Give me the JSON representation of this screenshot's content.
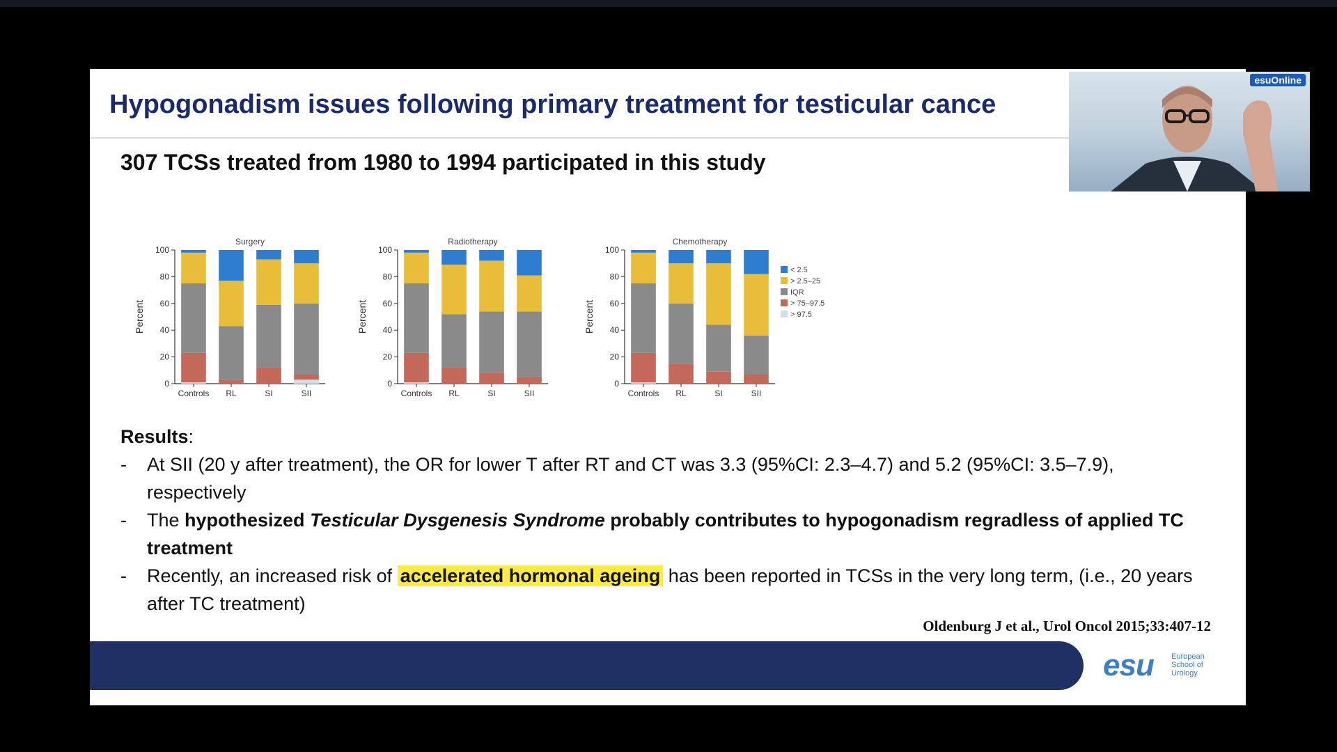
{
  "slide": {
    "title": "Hypogonadism issues following primary treatment for testicular cance",
    "subtitle": "307 TCSs treated from 1980 to 1994 participated in this study",
    "results_label": "Results",
    "results_colon": ":",
    "bullet_dash": "-",
    "bullets": [
      {
        "text": "At SII (20 y after treatment), the OR for lower T after RT and CT was 3.3 (95%CI: 2.3–4.7) and 5.2 (95%CI: 3.5–7.9), respectively"
      },
      {
        "pre": "The ",
        "bold1": "hypothesized ",
        "italic": "Testicular Dysgenesis Syndrome",
        "bold2": " probably contributes to hypogonadism regradless of applied TC treatment"
      },
      {
        "pre": "Recently, an increased risk of ",
        "highlight": "accelerated hormonal ageing",
        "post": " has been reported in TCSs in the very long term, (i.e., 20 years after TC treatment)"
      }
    ],
    "citation": "Oldenburg J et al., Urol Oncol 2015;33:407-12"
  },
  "logo": {
    "word": "esu",
    "line1": "European",
    "line2": "School of",
    "line3": "Urology"
  },
  "webcam": {
    "badge": "esuOnline"
  },
  "colors": {
    "title": "#1b2a6b",
    "footer_bar": "#1f3064",
    "highlight": "#fbeb43",
    "lt25": "#2f7dd1",
    "25_75": "#e8bd3a",
    "IQR": "#8a8a8a",
    "75_97_5": "#c4685a",
    "gt97_5": "#cfdff0"
  },
  "chart_data": [
    {
      "type": "bar",
      "stacked": true,
      "title": "Surgery",
      "ylabel": "Percent",
      "ylim": [
        0,
        100
      ],
      "yticks": [
        0,
        20,
        40,
        60,
        80,
        100
      ],
      "categories": [
        "Controls",
        "RL",
        "SI",
        "SII"
      ],
      "series": [
        {
          "name": "> 97.5",
          "color": "#cfdff0",
          "values": [
            1,
            0,
            0,
            3
          ]
        },
        {
          "name": "> 75–97.5",
          "color": "#c4685a",
          "values": [
            22,
            3,
            12,
            4
          ]
        },
        {
          "name": "IQR",
          "color": "#8a8a8a",
          "values": [
            52,
            40,
            47,
            53
          ]
        },
        {
          "name": "> 2.5–25",
          "color": "#e8bd3a",
          "values": [
            23,
            34,
            34,
            30
          ]
        },
        {
          "name": "< 2.5",
          "color": "#2f7dd1",
          "values": [
            2,
            23,
            7,
            10
          ]
        }
      ]
    },
    {
      "type": "bar",
      "stacked": true,
      "title": "Radiotherapy",
      "ylabel": "Percent",
      "ylim": [
        0,
        100
      ],
      "yticks": [
        0,
        20,
        40,
        60,
        80,
        100
      ],
      "categories": [
        "Controls",
        "RL",
        "SI",
        "SII"
      ],
      "series": [
        {
          "name": "> 97.5",
          "color": "#cfdff0",
          "values": [
            1,
            0,
            0,
            0
          ]
        },
        {
          "name": "> 75–97.5",
          "color": "#c4685a",
          "values": [
            22,
            12,
            8,
            5
          ]
        },
        {
          "name": "IQR",
          "color": "#8a8a8a",
          "values": [
            52,
            40,
            46,
            49
          ]
        },
        {
          "name": "> 2.5–25",
          "color": "#e8bd3a",
          "values": [
            23,
            37,
            38,
            27
          ]
        },
        {
          "name": "< 2.5",
          "color": "#2f7dd1",
          "values": [
            2,
            11,
            8,
            19
          ]
        }
      ]
    },
    {
      "type": "bar",
      "stacked": true,
      "title": "Chemotherapy",
      "ylabel": "Percent",
      "ylim": [
        0,
        100
      ],
      "yticks": [
        0,
        20,
        40,
        60,
        80,
        100
      ],
      "categories": [
        "Controls",
        "RL",
        "SI",
        "SII"
      ],
      "legend_position": "right",
      "series": [
        {
          "name": "> 97.5",
          "color": "#cfdff0",
          "values": [
            1,
            0,
            0,
            0
          ]
        },
        {
          "name": "> 75–97.5",
          "color": "#c4685a",
          "values": [
            22,
            15,
            9,
            7
          ]
        },
        {
          "name": "IQR",
          "color": "#8a8a8a",
          "values": [
            52,
            45,
            35,
            29
          ]
        },
        {
          "name": "> 2.5–25",
          "color": "#e8bd3a",
          "values": [
            23,
            30,
            46,
            46
          ]
        },
        {
          "name": "< 2.5",
          "color": "#2f7dd1",
          "values": [
            2,
            10,
            10,
            18
          ]
        }
      ],
      "legend": [
        "< 2.5",
        "> 2.5–25",
        "IQR",
        "> 75–97.5",
        "> 97.5"
      ]
    }
  ]
}
